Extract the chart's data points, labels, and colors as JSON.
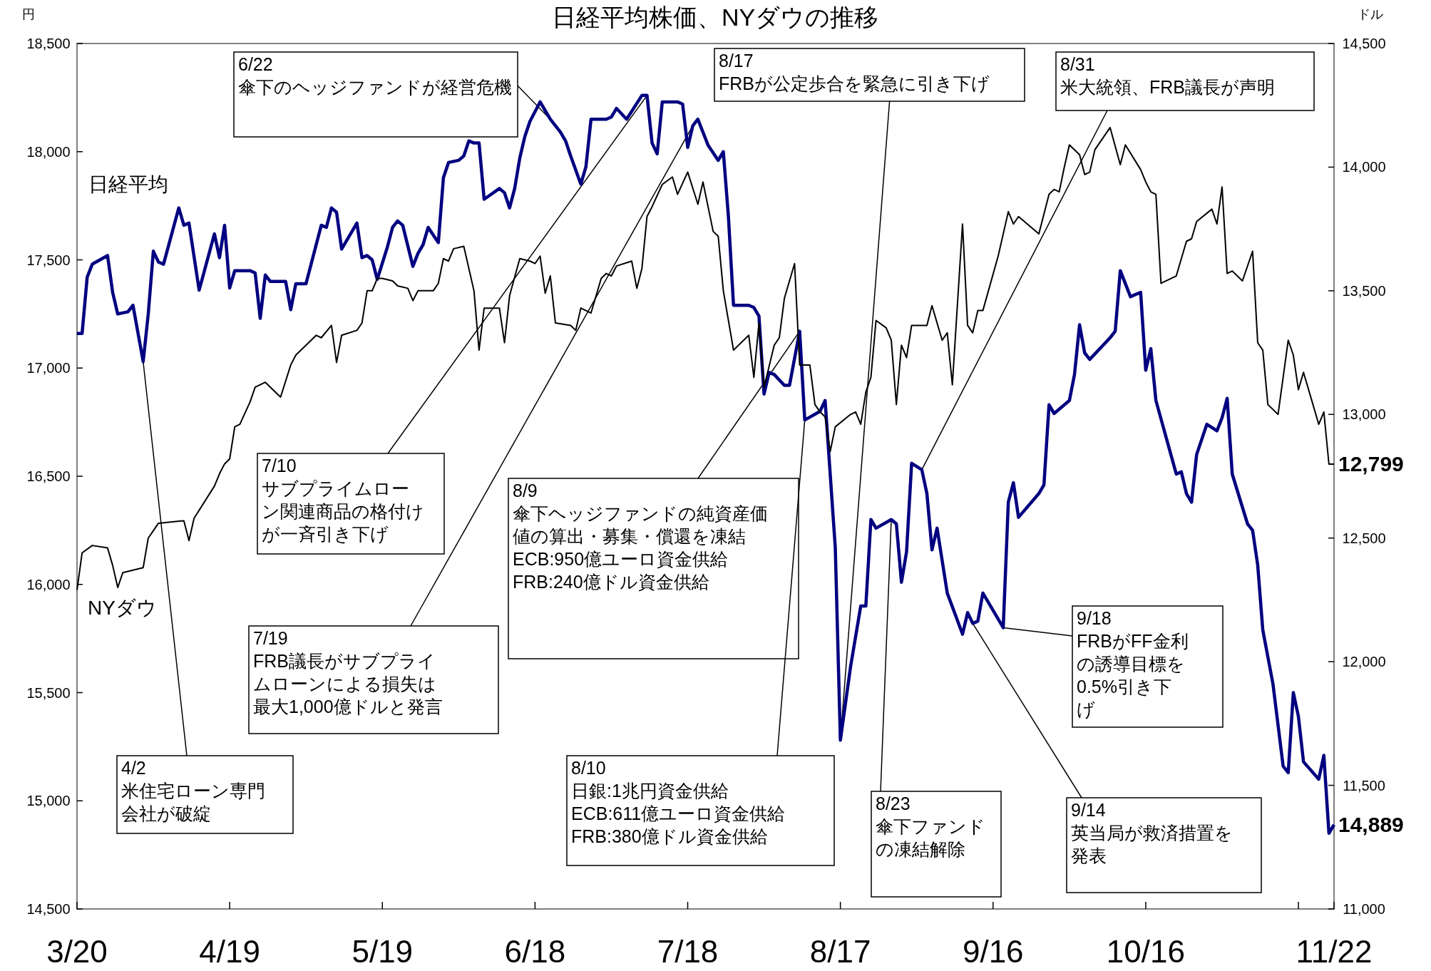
{
  "chart_data": {
    "type": "line",
    "title": "日経平均株価、NYダウの推移",
    "ylabel": "円",
    "y2label": "ドル",
    "line_style": "solid",
    "xlim": [
      "--03-20",
      "--11-22"
    ],
    "xticks": [
      {
        "value": "--03-20",
        "label": "3/20"
      },
      {
        "value": "--04-19",
        "label": "4/19"
      },
      {
        "value": "--05-19",
        "label": "5/19"
      },
      {
        "value": "--06-18",
        "label": "6/18"
      },
      {
        "value": "--07-18",
        "label": "7/18"
      },
      {
        "value": "--08-17",
        "label": "8/17"
      },
      {
        "value": "--09-16",
        "label": "9/16"
      },
      {
        "value": "--10-16",
        "label": "10/16"
      },
      {
        "value": "--11-15",
        "label": null
      },
      {
        "value": "--11-22",
        "label": "11/22"
      }
    ],
    "ylim": [
      14500,
      18500
    ],
    "yticks": [
      {
        "value": 14500,
        "label": "14,500"
      },
      {
        "value": 15000,
        "label": "15,000"
      },
      {
        "value": 15500,
        "label": "15,500"
      },
      {
        "value": 16000,
        "label": "16,000"
      },
      {
        "value": 16500,
        "label": "16,500"
      },
      {
        "value": 17000,
        "label": "17,000"
      },
      {
        "value": 17500,
        "label": "17,500"
      },
      {
        "value": 18000,
        "label": "18,000"
      },
      {
        "value": 18500,
        "label": "18,500"
      }
    ],
    "y2lim": [
      11000,
      14500
    ],
    "y2ticks": [
      {
        "value": 11000,
        "label": "11,000"
      },
      {
        "value": 11500,
        "label": "11,500"
      },
      {
        "value": 12000,
        "label": "12,000"
      },
      {
        "value": 12500,
        "label": "12,500"
      },
      {
        "value": 13000,
        "label": "13,000"
      },
      {
        "value": 13500,
        "label": "13,500"
      },
      {
        "value": 14000,
        "label": "14,000"
      },
      {
        "value": 14500,
        "label": "14,500"
      }
    ],
    "series": [
      {
        "name": "日経平均",
        "color": "#000080",
        "axis": "y",
        "x": [
          "--03-20",
          "--03-21",
          "--03-22",
          "--03-23",
          "--03-26",
          "--03-27",
          "--03-28",
          "--03-30",
          "--03-31",
          "--04-02",
          "--04-03",
          "--04-04",
          "--04-05",
          "--04-06",
          "--04-09",
          "--04-10",
          "--04-11",
          "--04-13",
          "--04-16",
          "--04-17",
          "--04-18",
          "--04-19",
          "--04-20",
          "--04-23",
          "--04-24",
          "--04-25",
          "--04-26",
          "--04-27",
          "--04-30",
          "--05-01",
          "--05-02",
          "--05-04",
          "--05-07",
          "--05-08",
          "--05-09",
          "--05-10",
          "--05-11",
          "--05-14",
          "--05-15",
          "--05-16",
          "--05-17",
          "--05-18",
          "--05-20",
          "--05-21",
          "--05-22",
          "--05-23",
          "--05-25",
          "--05-26",
          "--05-27",
          "--05-28",
          "--05-30",
          "--05-31",
          "--06-01",
          "--06-03",
          "--06-04",
          "--06-05",
          "--06-06",
          "--06-07",
          "--06-08",
          "--06-11",
          "--06-12",
          "--06-13",
          "--06-14",
          "--06-15",
          "--06-16",
          "--06-17",
          "--06-19",
          "--06-21",
          "--06-23",
          "--06-24",
          "--06-25",
          "--06-27",
          "--06-28",
          "--06-29",
          "--07-02",
          "--07-03",
          "--07-04",
          "--07-06",
          "--07-09",
          "--07-10",
          "--07-11",
          "--07-12",
          "--07-13",
          "--07-16",
          "--07-17",
          "--07-18",
          "--07-19",
          "--07-20",
          "--07-22",
          "--07-24",
          "--07-25",
          "--07-26",
          "--07-27",
          "--07-30",
          "--07-31",
          "--08-01",
          "--08-02",
          "--08-03",
          "--08-04",
          "--08-06",
          "--08-07",
          "--08-09",
          "--08-10",
          "--08-13",
          "--08-14",
          "--08-16",
          "--08-17",
          "--08-18",
          "--08-19",
          "--08-21",
          "--08-22",
          "--08-23",
          "--08-24",
          "--08-27",
          "--08-28",
          "--08-29",
          "--08-30",
          "--08-31",
          "--09-02",
          "--09-03",
          "--09-04",
          "--09-05",
          "--09-07",
          "--09-10",
          "--09-11",
          "--09-12",
          "--09-13",
          "--09-14",
          "--09-18",
          "--09-19",
          "--09-20",
          "--09-21",
          "--09-25",
          "--09-26",
          "--09-27",
          "--09-28",
          "--10-01",
          "--10-02",
          "--10-03",
          "--10-04",
          "--10-05",
          "--10-09",
          "--10-10",
          "--10-11",
          "--10-13",
          "--10-15",
          "--10-16",
          "--10-17",
          "--10-18",
          "--10-22",
          "--10-23",
          "--10-24",
          "--10-25",
          "--10-26",
          "--10-28",
          "--10-30",
          "--10-31",
          "--11-01",
          "--11-02",
          "--11-05",
          "--11-06",
          "--11-07",
          "--11-08",
          "--11-10",
          "--11-12",
          "--11-13",
          "--11-14",
          "--11-15",
          "--11-16",
          "--11-19",
          "--11-20",
          "--11-21",
          "--11-22"
        ],
        "values": [
          17160,
          17160,
          17420,
          17480,
          17520,
          17350,
          17250,
          17260,
          17290,
          17030,
          17250,
          17540,
          17490,
          17480,
          17740,
          17660,
          17670,
          17360,
          17620,
          17510,
          17660,
          17370,
          17450,
          17450,
          17440,
          17230,
          17430,
          17400,
          17400,
          17270,
          17390,
          17390,
          17660,
          17650,
          17740,
          17720,
          17550,
          17670,
          17510,
          17520,
          17500,
          17410,
          17560,
          17650,
          17680,
          17660,
          17470,
          17530,
          17570,
          17650,
          17580,
          17880,
          17950,
          17960,
          17980,
          18050,
          18040,
          18040,
          17780,
          17830,
          17810,
          17740,
          17830,
          17970,
          18070,
          18140,
          18230,
          18150,
          18090,
          18050,
          17980,
          17850,
          17930,
          18150,
          18150,
          18160,
          18200,
          18150,
          18260,
          18260,
          18040,
          17990,
          18230,
          18230,
          18220,
          18020,
          18120,
          18150,
          18030,
          17960,
          18000,
          17700,
          17290,
          17290,
          17280,
          17240,
          16880,
          16980,
          16970,
          16920,
          16920,
          17170,
          16760,
          16800,
          16850,
          16170,
          15280,
          15450,
          15620,
          15900,
          15900,
          16300,
          16260,
          16300,
          16280,
          16010,
          16150,
          16560,
          16530,
          16420,
          16160,
          16260,
          15960,
          15770,
          15870,
          15820,
          15830,
          15960,
          15800,
          16380,
          16470,
          16310,
          16420,
          16460,
          16830,
          16790,
          16850,
          16970,
          17200,
          17070,
          17040,
          17140,
          17170,
          17450,
          17330,
          17350,
          16990,
          17090,
          16850,
          16510,
          16520,
          16420,
          16380,
          16600,
          16740,
          16710,
          16770,
          16860,
          16510,
          16280,
          16250,
          16090,
          15790,
          15540,
          15160,
          15130,
          15500,
          15390,
          15180,
          15100,
          15210,
          14850,
          14889
        ],
        "value_labels": [
          null,
          null,
          null,
          null,
          null,
          null,
          null,
          null,
          null,
          null,
          null,
          null,
          null,
          null,
          null,
          null,
          null,
          null,
          null,
          null,
          null,
          null,
          null,
          null,
          null,
          null,
          null,
          null,
          null,
          null,
          null,
          null,
          null,
          null,
          null,
          null,
          null,
          null,
          null,
          null,
          null,
          null,
          null,
          null,
          null,
          null,
          null,
          null,
          null,
          null,
          null,
          null,
          null,
          null,
          null,
          null,
          null,
          null,
          null,
          null,
          null,
          null,
          null,
          null,
          null,
          null,
          null,
          null,
          null,
          null,
          null,
          null,
          null,
          null,
          null,
          null,
          null,
          null,
          null,
          null,
          null,
          null,
          null,
          null,
          null,
          null,
          null,
          null,
          null,
          null,
          null,
          null,
          null,
          null,
          null,
          null,
          null,
          null,
          null,
          null,
          null,
          null,
          null,
          null,
          null,
          null,
          null,
          null,
          null,
          null,
          null,
          null,
          null,
          null,
          null,
          null,
          null,
          null,
          null,
          null,
          null,
          null,
          null,
          null,
          null,
          null,
          null,
          null,
          null,
          null,
          null,
          null,
          null,
          null,
          null,
          null,
          null,
          null,
          null,
          null,
          null,
          null,
          null,
          null,
          null,
          null,
          null,
          null,
          null,
          null,
          null,
          null,
          null,
          null,
          null,
          null,
          null,
          null,
          null,
          null,
          null,
          null,
          null,
          null,
          null,
          null,
          null,
          null,
          null,
          null,
          null,
          null,
          "14,889"
        ]
      },
      {
        "name": "NYダウ",
        "color": "#000000",
        "axis": "y2",
        "x": [
          "--03-20",
          "--03-21",
          "--03-23",
          "--03-26",
          "--03-27",
          "--03-28",
          "--03-29",
          "--04-02",
          "--04-03",
          "--04-04",
          "--04-05",
          "--04-10",
          "--04-11",
          "--04-12",
          "--04-16",
          "--04-17",
          "--04-18",
          "--04-19",
          "--04-20",
          "--04-21",
          "--04-23",
          "--04-24",
          "--04-26",
          "--04-29",
          "--05-01",
          "--05-02",
          "--05-04",
          "--05-06",
          "--05-07",
          "--05-09",
          "--05-10",
          "--05-11",
          "--05-14",
          "--05-15",
          "--05-16",
          "--05-17",
          "--05-18",
          "--05-19",
          "--05-21",
          "--05-22",
          "--05-24",
          "--05-25",
          "--05-26",
          "--05-29",
          "--05-30",
          "--05-31",
          "--06-01",
          "--06-02",
          "--06-04",
          "--06-06",
          "--06-07",
          "--06-08",
          "--06-11",
          "--06-12",
          "--06-13",
          "--06-15",
          "--06-17",
          "--06-18",
          "--06-19",
          "--06-20",
          "--06-21",
          "--06-22",
          "--06-25",
          "--06-26",
          "--06-27",
          "--06-29",
          "--07-01",
          "--07-02",
          "--07-03",
          "--07-04",
          "--07-07",
          "--07-08",
          "--07-09",
          "--07-10",
          "--07-11",
          "--07-13",
          "--07-15",
          "--07-16",
          "--07-18",
          "--07-20",
          "--07-21",
          "--07-23",
          "--07-24",
          "--07-25",
          "--07-27",
          "--07-30",
          "--07-31",
          "--08-01",
          "--08-02",
          "--08-04",
          "--08-05",
          "--08-06",
          "--08-08",
          "--08-09",
          "--08-10",
          "--08-11",
          "--08-12",
          "--08-13",
          "--08-14",
          "--08-15",
          "--08-16",
          "--08-19",
          "--08-20",
          "--08-21",
          "--08-22",
          "--08-23",
          "--08-24",
          "--08-26",
          "--08-27",
          "--08-28",
          "--08-29",
          "--08-30",
          "--08-31",
          "--09-03",
          "--09-04",
          "--09-06",
          "--09-07",
          "--09-08",
          "--09-10",
          "--09-11",
          "--09-12",
          "--09-13",
          "--09-14",
          "--09-17",
          "--09-19",
          "--09-20",
          "--09-21",
          "--09-25",
          "--09-27",
          "--09-28",
          "--09-29",
          "--09-30",
          "--10-01",
          "--10-03",
          "--10-04",
          "--10-05",
          "--10-06",
          "--10-09",
          "--10-11",
          "--10-12",
          "--10-15",
          "--10-16",
          "--10-17",
          "--10-18",
          "--10-19",
          "--10-22",
          "--10-24",
          "--10-25",
          "--10-26",
          "--10-29",
          "--10-30",
          "--10-31",
          "--11-01",
          "--11-02",
          "--11-04",
          "--11-06",
          "--11-07",
          "--11-08",
          "--11-09",
          "--11-10",
          "--11-11",
          "--11-13",
          "--11-14",
          "--11-15",
          "--11-16",
          "--11-18",
          "--11-19",
          "--11-20",
          "--11-21",
          "--11-22"
        ],
        "values": [
          12290,
          12440,
          12470,
          12460,
          12390,
          12300,
          12360,
          12380,
          12500,
          12530,
          12560,
          12570,
          12490,
          12580,
          12710,
          12760,
          12800,
          12820,
          12950,
          12960,
          13050,
          13110,
          13130,
          13070,
          13200,
          13240,
          13280,
          13320,
          13310,
          13360,
          13210,
          13320,
          13340,
          13370,
          13500,
          13500,
          13550,
          13550,
          13540,
          13520,
          13510,
          13460,
          13500,
          13500,
          13530,
          13630,
          13620,
          13670,
          13680,
          13500,
          13260,
          13430,
          13430,
          13290,
          13480,
          13630,
          13620,
          13610,
          13640,
          13490,
          13560,
          13370,
          13360,
          13340,
          13430,
          13410,
          13550,
          13570,
          13560,
          13600,
          13620,
          13510,
          13590,
          13800,
          13840,
          13930,
          13960,
          13890,
          13980,
          13850,
          13940,
          13740,
          13720,
          13500,
          13260,
          13320,
          13150,
          13370,
          13110,
          13280,
          13310,
          13470,
          13610,
          13200,
          13200,
          13200,
          13040,
          13010,
          12990,
          12850,
          12950,
          13000,
          13010,
          12960,
          13090,
          13150,
          13380,
          13350,
          13300,
          13040,
          13280,
          13230,
          13360,
          13360,
          13440,
          13300,
          13330,
          13120,
          13770,
          13360,
          13330,
          13420,
          13420,
          13640,
          13820,
          13770,
          13800,
          13730,
          13890,
          13910,
          13900,
          14000,
          14090,
          14050,
          13970,
          13980,
          14070,
          14160,
          14010,
          14090,
          13990,
          13940,
          13900,
          13890,
          13530,
          13560,
          13700,
          13710,
          13780,
          13830,
          13770,
          13920,
          13570,
          13580,
          13540,
          13660,
          13290,
          13260,
          13040,
          13020,
          13000,
          13300,
          13240,
          13100,
          13170,
          13030,
          12960,
          13010,
          12799,
          12799
        ],
        "value_labels": [
          null,
          null,
          null,
          null,
          null,
          null,
          null,
          null,
          null,
          null,
          null,
          null,
          null,
          null,
          null,
          null,
          null,
          null,
          null,
          null,
          null,
          null,
          null,
          null,
          null,
          null,
          null,
          null,
          null,
          null,
          null,
          null,
          null,
          null,
          null,
          null,
          null,
          null,
          null,
          null,
          null,
          null,
          null,
          null,
          null,
          null,
          null,
          null,
          null,
          null,
          null,
          null,
          null,
          null,
          null,
          null,
          null,
          null,
          null,
          null,
          null,
          null,
          null,
          null,
          null,
          null,
          null,
          null,
          null,
          null,
          null,
          null,
          null,
          null,
          null,
          null,
          null,
          null,
          null,
          null,
          null,
          null,
          null,
          null,
          null,
          null,
          null,
          null,
          null,
          null,
          null,
          null,
          null,
          null,
          null,
          null,
          null,
          null,
          null,
          null,
          null,
          null,
          null,
          null,
          null,
          null,
          null,
          null,
          null,
          null,
          null,
          null,
          null,
          null,
          null,
          null,
          null,
          null,
          null,
          null,
          null,
          null,
          null,
          null,
          null,
          null,
          null,
          null,
          null,
          null,
          null,
          null,
          null,
          null,
          null,
          null,
          null,
          null,
          null,
          null,
          null,
          null,
          null,
          null,
          null,
          null,
          null,
          null,
          null,
          null,
          null,
          null,
          null,
          null,
          null,
          null,
          null,
          null,
          null,
          null,
          null,
          null,
          null,
          null,
          null,
          null,
          null,
          null,
          null,
          "12,799"
        ]
      }
    ],
    "annotations": [
      {
        "text": "4/2\n米住宅ローン専門会社が破綻",
        "x": "--04-02",
        "y": 17030
      },
      {
        "text": "6/22\n傘下のヘッジファンドが経営危機",
        "x": "--06-21",
        "y": 18150
      },
      {
        "text": "7/10\nサブプライムローン関連商品の格付けが一斉引き下げ",
        "x": "--07-10",
        "y": 18260
      },
      {
        "text": "7/19\nFRB議長がサブプライムローンによる損失は最大1,000億ドルと発言",
        "x": "--07-19",
        "y": 18120
      },
      {
        "text": "8/9\n傘下ヘッジファンドの純資産価値の算出・募集・償還を凍結\nECB:950億ユーロ資金供給\nFRB:240億ドル資金供給",
        "x": "--08-09",
        "y": 17170
      },
      {
        "text": "8/10\n日銀:1兆円資金供給\nECB:611億ユーロ資金供給\nFRB:380億ドル資金供給",
        "x": "--08-10",
        "y": 16760
      },
      {
        "text": "8/17\nFRBが公定歩合を緊急に引き下げ",
        "x": "--08-17",
        "y": 15280
      },
      {
        "text": "8/23\n傘下ファンドの凍結解除",
        "x": "--08-27",
        "y": 16300
      },
      {
        "text": "8/31\n米大統領、FRB議長が声明",
        "x": "--09-02",
        "y": 16530
      },
      {
        "text": "9/14\n英当局が救済措置を発表",
        "x": "--09-12",
        "y": 15820
      },
      {
        "text": "9/18\nFRBがFF金利の誘導目標を0.5%引き下げ",
        "x": "--09-18",
        "y": 15800
      }
    ]
  }
}
